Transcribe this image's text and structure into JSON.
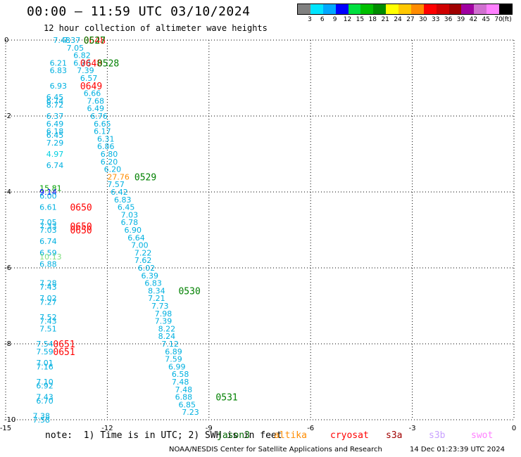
{
  "header": {
    "title": "00:00 – 11:59 UTC 03/10/2024",
    "subtitle": "12 hour collection of altimeter wave heights"
  },
  "legend": {
    "unit": "(ft)",
    "swatches": [
      {
        "label": "3",
        "color": "#808080"
      },
      {
        "label": "6",
        "color": "#00e5ff"
      },
      {
        "label": "9",
        "color": "#00a8ff"
      },
      {
        "label": "12",
        "color": "#0000ff"
      },
      {
        "label": "15",
        "color": "#00e040"
      },
      {
        "label": "18",
        "color": "#00c000"
      },
      {
        "label": "21",
        "color": "#008c00"
      },
      {
        "label": "24",
        "color": "#ffff00"
      },
      {
        "label": "27",
        "color": "#ffc800"
      },
      {
        "label": "30",
        "color": "#ff8c00"
      },
      {
        "label": "33",
        "color": "#ff0000"
      },
      {
        "label": "36",
        "color": "#d00000"
      },
      {
        "label": "39",
        "color": "#a00000"
      },
      {
        "label": "42",
        "color": "#a000a0"
      },
      {
        "label": "45",
        "color": "#d070d0"
      },
      {
        "label": "70",
        "color": "#ff80ff"
      },
      {
        "label": "",
        "color": "#000000"
      }
    ]
  },
  "axes": {
    "x_ticks": [
      "-15",
      "-12",
      "-9",
      "-6",
      "-3",
      "0"
    ],
    "y_ticks": [
      "0",
      "-2",
      "-4",
      "-6",
      "-8",
      "-10"
    ]
  },
  "map_data": {
    "lon_range": [
      -15,
      0
    ],
    "lat_range": [
      -10,
      0
    ],
    "observations": [
      {
        "lon": -13.6,
        "lat": 0.0,
        "v": "7.48",
        "c": "#00b0e0"
      },
      {
        "lon": -13.3,
        "lat": 0.0,
        "v": "7.37",
        "c": "#00b0e0"
      },
      {
        "lon": -13.2,
        "lat": -0.2,
        "v": "7.05",
        "c": "#00b0e0"
      },
      {
        "lon": -13.0,
        "lat": -0.4,
        "v": "6.82",
        "c": "#00b0e0"
      },
      {
        "lon": -13.7,
        "lat": -0.6,
        "v": "6.21",
        "c": "#00b0e0"
      },
      {
        "lon": -13.0,
        "lat": -0.6,
        "v": "6.78",
        "c": "#00b0e0"
      },
      {
        "lon": -13.7,
        "lat": -0.8,
        "v": "6.83",
        "c": "#00b0e0"
      },
      {
        "lon": -12.9,
        "lat": -0.8,
        "v": "7.39",
        "c": "#00b0e0"
      },
      {
        "lon": -12.8,
        "lat": -1.0,
        "v": "6.57",
        "c": "#00b0e0"
      },
      {
        "lon": -13.7,
        "lat": -1.2,
        "v": "6.93",
        "c": "#00b0e0"
      },
      {
        "lon": -12.7,
        "lat": -1.4,
        "v": "6.66",
        "c": "#00b0e0"
      },
      {
        "lon": -13.8,
        "lat": -1.5,
        "v": "6.45",
        "c": "#00b0e0"
      },
      {
        "lon": -13.8,
        "lat": -1.6,
        "v": "6.74",
        "c": "#00b0e0"
      },
      {
        "lon": -12.6,
        "lat": -1.6,
        "v": "7.68",
        "c": "#00b0e0"
      },
      {
        "lon": -13.8,
        "lat": -1.7,
        "v": "8.72",
        "c": "#00b0e0"
      },
      {
        "lon": -12.6,
        "lat": -1.8,
        "v": "6.49",
        "c": "#00b0e0"
      },
      {
        "lon": -12.5,
        "lat": -2.0,
        "v": "6.76",
        "c": "#00b0e0"
      },
      {
        "lon": -13.8,
        "lat": -2.0,
        "v": "6.37",
        "c": "#00b0e0"
      },
      {
        "lon": -13.8,
        "lat": -2.2,
        "v": "6.49",
        "c": "#00b0e0"
      },
      {
        "lon": -12.4,
        "lat": -2.2,
        "v": "6.65",
        "c": "#00b0e0"
      },
      {
        "lon": -12.4,
        "lat": -2.4,
        "v": "6.17",
        "c": "#00b0e0"
      },
      {
        "lon": -13.8,
        "lat": -2.4,
        "v": "6.18",
        "c": "#00b0e0"
      },
      {
        "lon": -13.8,
        "lat": -2.5,
        "v": "6.45",
        "c": "#00b0e0"
      },
      {
        "lon": -13.8,
        "lat": -2.7,
        "v": "7.29",
        "c": "#00b0e0"
      },
      {
        "lon": -12.3,
        "lat": -2.6,
        "v": "6.31",
        "c": "#00b0e0"
      },
      {
        "lon": -12.3,
        "lat": -2.8,
        "v": "6.86",
        "c": "#00b0e0"
      },
      {
        "lon": -12.2,
        "lat": -3.0,
        "v": "6.80",
        "c": "#00b0e0"
      },
      {
        "lon": -13.8,
        "lat": -3.0,
        "v": "4.97",
        "c": "#00d0e0"
      },
      {
        "lon": -12.2,
        "lat": -3.2,
        "v": "6.20",
        "c": "#00b0e0"
      },
      {
        "lon": -13.8,
        "lat": -3.3,
        "v": "6.74",
        "c": "#00b0e0"
      },
      {
        "lon": -12.1,
        "lat": -3.4,
        "v": "6.20",
        "c": "#00b0e0"
      },
      {
        "lon": -12.0,
        "lat": -3.6,
        "v": "27.76",
        "c": "#ff8c00"
      },
      {
        "lon": -12.0,
        "lat": -3.8,
        "v": "7.57",
        "c": "#00b0e0"
      },
      {
        "lon": -14.0,
        "lat": -3.9,
        "v": "15.81",
        "c": "#00a000"
      },
      {
        "lon": -14.0,
        "lat": -4.0,
        "v": "9.14",
        "c": "#0000ff"
      },
      {
        "lon": -14.0,
        "lat": -4.1,
        "v": "6.00",
        "c": "#00b0e0"
      },
      {
        "lon": -11.9,
        "lat": -4.0,
        "v": "6.42",
        "c": "#00b0e0"
      },
      {
        "lon": -11.8,
        "lat": -4.2,
        "v": "6.83",
        "c": "#00b0e0"
      },
      {
        "lon": -11.7,
        "lat": -4.4,
        "v": "6.45",
        "c": "#00b0e0"
      },
      {
        "lon": -14.0,
        "lat": -4.4,
        "v": "6.61",
        "c": "#00b0e0"
      },
      {
        "lon": -11.6,
        "lat": -4.6,
        "v": "7.03",
        "c": "#00b0e0"
      },
      {
        "lon": -11.6,
        "lat": -4.8,
        "v": "6.78",
        "c": "#00b0e0"
      },
      {
        "lon": -14.0,
        "lat": -4.8,
        "v": "7.05",
        "c": "#00b0e0"
      },
      {
        "lon": -14.0,
        "lat": -4.9,
        "v": "7.33",
        "c": "#00b0e0"
      },
      {
        "lon": -14.0,
        "lat": -5.0,
        "v": "7.03",
        "c": "#00b0e0"
      },
      {
        "lon": -11.5,
        "lat": -5.0,
        "v": "6.90",
        "c": "#00b0e0"
      },
      {
        "lon": -11.4,
        "lat": -5.2,
        "v": "6.64",
        "c": "#00b0e0"
      },
      {
        "lon": -14.0,
        "lat": -5.3,
        "v": "6.74",
        "c": "#00b0e0"
      },
      {
        "lon": -11.3,
        "lat": -5.4,
        "v": "7.00",
        "c": "#00b0e0"
      },
      {
        "lon": -11.2,
        "lat": -5.6,
        "v": "7.22",
        "c": "#00b0e0"
      },
      {
        "lon": -14.0,
        "lat": -5.6,
        "v": "6.59",
        "c": "#00b0e0"
      },
      {
        "lon": -14.0,
        "lat": -5.7,
        "v": "10.13",
        "c": "#80e080"
      },
      {
        "lon": -11.2,
        "lat": -5.8,
        "v": "7.62",
        "c": "#00b0e0"
      },
      {
        "lon": -14.0,
        "lat": -5.9,
        "v": "6.88",
        "c": "#00b0e0"
      },
      {
        "lon": -11.1,
        "lat": -6.0,
        "v": "6.02",
        "c": "#00b0e0"
      },
      {
        "lon": -11.0,
        "lat": -6.2,
        "v": "6.39",
        "c": "#00b0e0"
      },
      {
        "lon": -14.0,
        "lat": -6.4,
        "v": "7.28",
        "c": "#00b0e0"
      },
      {
        "lon": -10.9,
        "lat": -6.4,
        "v": "6.83",
        "c": "#00b0e0"
      },
      {
        "lon": -14.0,
        "lat": -6.5,
        "v": "7.43",
        "c": "#00b0e0"
      },
      {
        "lon": -10.8,
        "lat": -6.6,
        "v": "8.34",
        "c": "#00b0e0"
      },
      {
        "lon": -14.0,
        "lat": -6.8,
        "v": "7.02",
        "c": "#00b0e0"
      },
      {
        "lon": -10.8,
        "lat": -6.8,
        "v": "7.21",
        "c": "#00b0e0"
      },
      {
        "lon": -14.0,
        "lat": -6.9,
        "v": "7.27",
        "c": "#00b0e0"
      },
      {
        "lon": -10.7,
        "lat": -7.0,
        "v": "7.73",
        "c": "#00b0e0"
      },
      {
        "lon": -10.6,
        "lat": -7.2,
        "v": "7.98",
        "c": "#00b0e0"
      },
      {
        "lon": -14.0,
        "lat": -7.3,
        "v": "7.52",
        "c": "#00b0e0"
      },
      {
        "lon": -14.0,
        "lat": -7.4,
        "v": "7.43",
        "c": "#00b0e0"
      },
      {
        "lon": -10.6,
        "lat": -7.4,
        "v": "7.39",
        "c": "#00b0e0"
      },
      {
        "lon": -14.0,
        "lat": -7.6,
        "v": "7.51",
        "c": "#00b0e0"
      },
      {
        "lon": -10.5,
        "lat": -7.6,
        "v": "8.22",
        "c": "#00b0e0"
      },
      {
        "lon": -10.5,
        "lat": -7.8,
        "v": "8.24",
        "c": "#00b0e0"
      },
      {
        "lon": -14.1,
        "lat": -8.0,
        "v": "7.54",
        "c": "#00b0e0"
      },
      {
        "lon": -10.4,
        "lat": -8.0,
        "v": "7.12",
        "c": "#00b0e0"
      },
      {
        "lon": -14.1,
        "lat": -8.2,
        "v": "7.59",
        "c": "#00b0e0"
      },
      {
        "lon": -10.3,
        "lat": -8.2,
        "v": "6.89",
        "c": "#00b0e0"
      },
      {
        "lon": -10.3,
        "lat": -8.4,
        "v": "7.59",
        "c": "#00b0e0"
      },
      {
        "lon": -14.1,
        "lat": -8.5,
        "v": "7.01",
        "c": "#00b0e0"
      },
      {
        "lon": -14.1,
        "lat": -8.6,
        "v": "7.16",
        "c": "#00b0e0"
      },
      {
        "lon": -10.2,
        "lat": -8.6,
        "v": "6.99",
        "c": "#00b0e0"
      },
      {
        "lon": -10.1,
        "lat": -8.8,
        "v": "6.58",
        "c": "#00b0e0"
      },
      {
        "lon": -14.1,
        "lat": -9.0,
        "v": "7.10",
        "c": "#00b0e0"
      },
      {
        "lon": -10.1,
        "lat": -9.0,
        "v": "7.48",
        "c": "#00b0e0"
      },
      {
        "lon": -14.1,
        "lat": -9.1,
        "v": "6.92",
        "c": "#00b0e0"
      },
      {
        "lon": -10.0,
        "lat": -9.2,
        "v": "7.48",
        "c": "#00b0e0"
      },
      {
        "lon": -10.0,
        "lat": -9.4,
        "v": "6.88",
        "c": "#00b0e0"
      },
      {
        "lon": -14.1,
        "lat": -9.4,
        "v": "7.43",
        "c": "#00b0e0"
      },
      {
        "lon": -14.1,
        "lat": -9.5,
        "v": "6.70",
        "c": "#00b0e0"
      },
      {
        "lon": -9.9,
        "lat": -9.6,
        "v": "6.85",
        "c": "#00b0e0"
      },
      {
        "lon": -9.8,
        "lat": -9.8,
        "v": "7.23",
        "c": "#00b0e0"
      },
      {
        "lon": -14.2,
        "lat": -9.9,
        "v": "7.38",
        "c": "#00b0e0"
      },
      {
        "lon": -14.2,
        "lat": -10.0,
        "v": "7.58",
        "c": "#00b0e0"
      }
    ],
    "pass_labels": [
      {
        "lon": -12.7,
        "lat": 0.0,
        "text": "0648",
        "c": "#ff0000"
      },
      {
        "lon": -12.7,
        "lat": 0.0,
        "text": "0527",
        "c": "#008000"
      },
      {
        "lon": -12.8,
        "lat": -0.6,
        "text": "0648",
        "c": "#ff0000"
      },
      {
        "lon": -12.3,
        "lat": -0.6,
        "text": "0528",
        "c": "#008000"
      },
      {
        "lon": -12.8,
        "lat": -1.2,
        "text": "0649",
        "c": "#ff0000"
      },
      {
        "lon": -11.2,
        "lat": -3.6,
        "text": "0529",
        "c": "#008000"
      },
      {
        "lon": -13.1,
        "lat": -4.4,
        "text": "0650",
        "c": "#ff0000"
      },
      {
        "lon": -13.1,
        "lat": -4.9,
        "text": "0650",
        "c": "#ff0000"
      },
      {
        "lon": -13.1,
        "lat": -5.0,
        "text": "0650",
        "c": "#ff0000"
      },
      {
        "lon": -9.9,
        "lat": -6.6,
        "text": "0530",
        "c": "#008000"
      },
      {
        "lon": -13.6,
        "lat": -8.0,
        "text": "0651",
        "c": "#ff0000"
      },
      {
        "lon": -13.6,
        "lat": -8.2,
        "text": "0651",
        "c": "#ff0000"
      },
      {
        "lon": -8.8,
        "lat": -9.4,
        "text": "0531",
        "c": "#008000"
      }
    ]
  },
  "footer": {
    "note": "note:  1) Time is in UTC; 2) SWH is in feet",
    "missions": [
      {
        "name": "jason3",
        "color": "#006400"
      },
      {
        "name": "altika",
        "color": "#ff8c00"
      },
      {
        "name": "cryosat",
        "color": "#ff0000"
      },
      {
        "name": "s3a",
        "color": "#a00000"
      },
      {
        "name": "s3b",
        "color": "#c8a0ff"
      },
      {
        "name": "swot",
        "color": "#ff80ff"
      }
    ],
    "credit": "NOAA/NESDIS Center for Satellite Applications and Research",
    "timestamp": "14 Dec 01:23:39 UTC 2024"
  }
}
